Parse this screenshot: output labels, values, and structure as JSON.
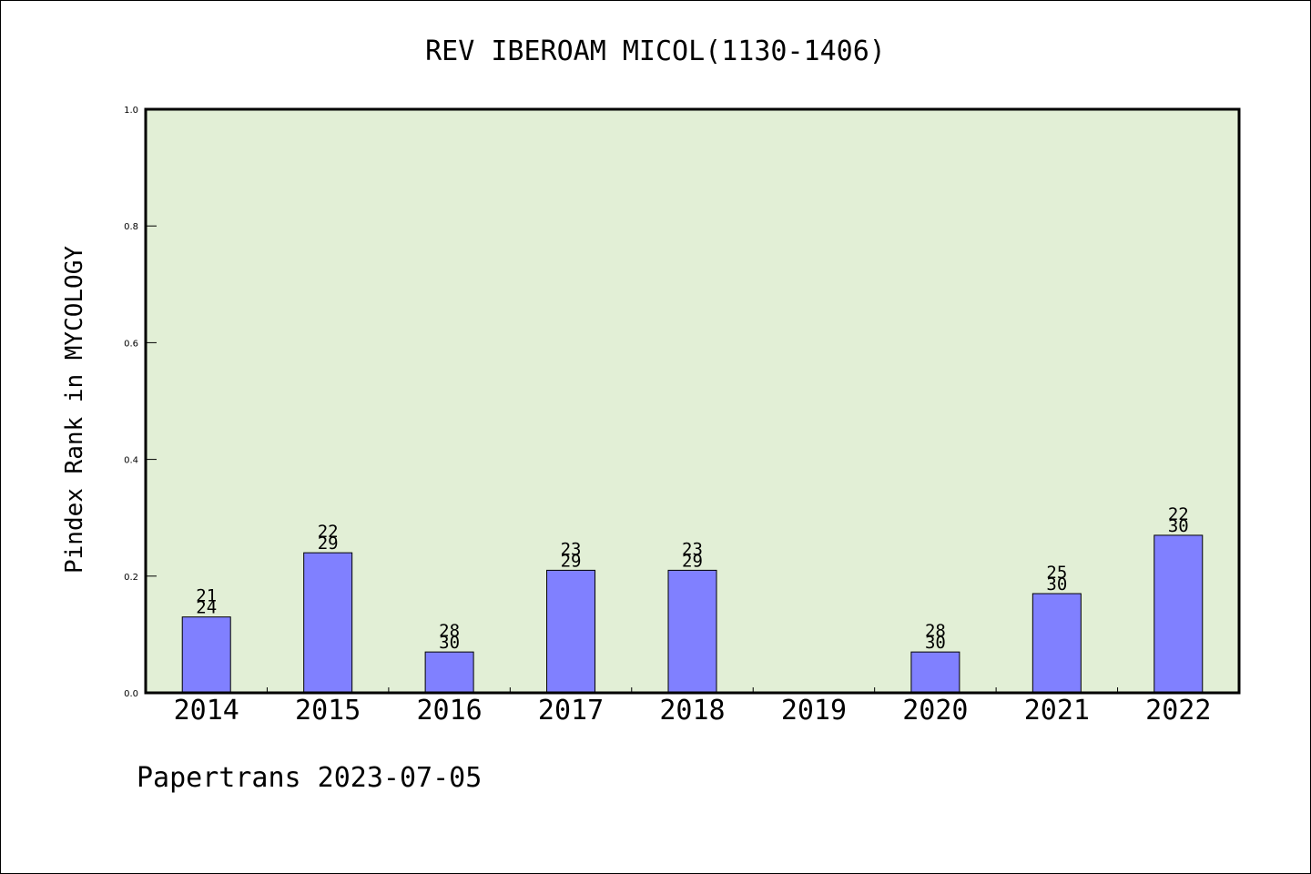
{
  "chart_data": {
    "type": "bar",
    "title": "REV IBEROAM MICOL(1130-1406)",
    "xlabel": "",
    "ylabel": "Pindex Rank in MYCOLOGY",
    "ylim": [
      0,
      1.0
    ],
    "yticks": [
      "0.0",
      "0.2",
      "0.4",
      "0.6",
      "0.8",
      "1.0"
    ],
    "categories": [
      "2014",
      "2015",
      "2016",
      "2017",
      "2018",
      "2019",
      "2020",
      "2021",
      "2022"
    ],
    "values": [
      0.13,
      0.24,
      0.07,
      0.21,
      0.21,
      null,
      0.07,
      0.17,
      0.27
    ],
    "rank_labels": [
      "21",
      "22",
      "28",
      "23",
      "23",
      "",
      "28",
      "25",
      "22"
    ],
    "total_labels": [
      "24",
      "29",
      "30",
      "29",
      "29",
      "",
      "30",
      "30",
      "30"
    ],
    "footer": "Papertrans 2023-07-05",
    "colors": {
      "plot_background": "#e2efd6",
      "bar_fill": "#8080ff",
      "bar_stroke": "#000000"
    },
    "grid": false,
    "legend": "none"
  }
}
